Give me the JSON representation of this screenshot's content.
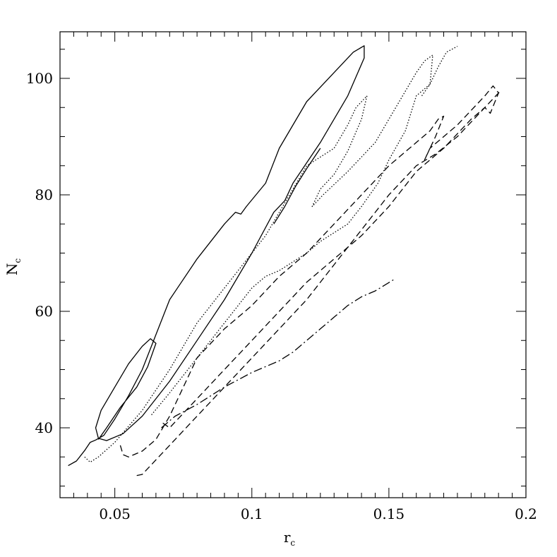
{
  "chart_data": {
    "type": "line",
    "xlabel": "r",
    "xlabel_sub": "c",
    "ylabel": "N",
    "ylabel_sub": "c",
    "xlim": [
      0.03,
      0.2
    ],
    "ylim": [
      28,
      108
    ],
    "xticks": [
      0.05,
      0.1,
      0.15,
      0.2
    ],
    "xtick_labels": [
      "0.05",
      "0.1",
      "0.15",
      "0.2"
    ],
    "yticks": [
      40,
      60,
      80,
      100
    ],
    "ytick_labels": [
      "40",
      "60",
      "80",
      "100"
    ],
    "grid": false,
    "series": [
      {
        "style": "solid",
        "points": [
          [
            0.033,
            33.5
          ],
          [
            0.036,
            34.3
          ],
          [
            0.039,
            36.1
          ],
          [
            0.041,
            37.5
          ],
          [
            0.043,
            37.9
          ],
          [
            0.046,
            38.7
          ],
          [
            0.05,
            41.5
          ],
          [
            0.055,
            45.5
          ],
          [
            0.06,
            50.0
          ],
          [
            0.065,
            56.0
          ],
          [
            0.07,
            62.0
          ],
          [
            0.08,
            69.0
          ],
          [
            0.09,
            75.0
          ],
          [
            0.094,
            77.0
          ],
          [
            0.096,
            76.7
          ],
          [
            0.098,
            78.0
          ],
          [
            0.105,
            82.0
          ],
          [
            0.11,
            88.0
          ],
          [
            0.12,
            96.0
          ],
          [
            0.13,
            101.0
          ],
          [
            0.137,
            104.5
          ],
          [
            0.141,
            105.6
          ],
          [
            0.141,
            103.5
          ],
          [
            0.135,
            97.0
          ],
          [
            0.125,
            89.0
          ],
          [
            0.115,
            82.0
          ],
          [
            0.112,
            79.0
          ],
          [
            0.108,
            77.0
          ],
          [
            0.1,
            70.0
          ],
          [
            0.09,
            62.0
          ],
          [
            0.08,
            55.0
          ],
          [
            0.07,
            48.0
          ],
          [
            0.06,
            42.0
          ],
          [
            0.053,
            39.0
          ],
          [
            0.047,
            37.8
          ],
          [
            0.044,
            38.2
          ],
          [
            0.043,
            40.0
          ],
          [
            0.045,
            43.0
          ],
          [
            0.05,
            47.0
          ],
          [
            0.055,
            51.0
          ],
          [
            0.06,
            54.0
          ],
          [
            0.063,
            55.3
          ],
          [
            0.065,
            54.5
          ],
          [
            0.062,
            50.5
          ],
          [
            0.058,
            47.0
          ],
          [
            0.052,
            43.5
          ],
          [
            0.047,
            40.0
          ],
          [
            0.044,
            38.0
          ]
        ]
      },
      {
        "style": "solid",
        "points": [
          [
            0.108,
            75.0
          ],
          [
            0.112,
            78.0
          ],
          [
            0.116,
            81.5
          ],
          [
            0.12,
            84.5
          ],
          [
            0.125,
            88.0
          ]
        ]
      },
      {
        "style": "dotted",
        "points": [
          [
            0.039,
            35.0
          ],
          [
            0.041,
            34.1
          ],
          [
            0.044,
            35.0
          ],
          [
            0.05,
            37.5
          ],
          [
            0.06,
            43.0
          ],
          [
            0.07,
            50.0
          ],
          [
            0.08,
            58.0
          ],
          [
            0.09,
            64.0
          ],
          [
            0.1,
            70.0
          ],
          [
            0.105,
            73.0
          ],
          [
            0.11,
            77.0
          ],
          [
            0.115,
            81.0
          ],
          [
            0.12,
            85.0
          ],
          [
            0.13,
            88.0
          ],
          [
            0.135,
            92.0
          ],
          [
            0.138,
            95.0
          ],
          [
            0.142,
            97.0
          ],
          [
            0.14,
            93.0
          ],
          [
            0.135,
            87.5
          ],
          [
            0.13,
            83.5
          ],
          [
            0.125,
            81.0
          ],
          [
            0.122,
            78.0
          ],
          [
            0.126,
            80.0
          ],
          [
            0.135,
            84.0
          ],
          [
            0.145,
            89.0
          ],
          [
            0.15,
            93.0
          ],
          [
            0.155,
            97.0
          ],
          [
            0.16,
            101.0
          ],
          [
            0.163,
            103.0
          ],
          [
            0.166,
            104.0
          ],
          [
            0.165,
            99.0
          ],
          [
            0.16,
            97.0
          ],
          [
            0.156,
            91.0
          ],
          [
            0.15,
            86.0
          ],
          [
            0.146,
            82.0
          ],
          [
            0.14,
            78.0
          ],
          [
            0.135,
            75.0
          ],
          [
            0.125,
            72.0
          ],
          [
            0.12,
            70.0
          ],
          [
            0.11,
            67.0
          ],
          [
            0.105,
            66.0
          ],
          [
            0.1,
            64.0
          ],
          [
            0.09,
            58.0
          ],
          [
            0.08,
            52.0
          ],
          [
            0.07,
            46.0
          ],
          [
            0.063,
            42.0
          ]
        ]
      },
      {
        "style": "dotted",
        "points": [
          [
            0.162,
            97.0
          ],
          [
            0.165,
            99.0
          ],
          [
            0.168,
            102.0
          ],
          [
            0.171,
            104.5
          ],
          [
            0.175,
            105.5
          ]
        ]
      },
      {
        "style": "dashed",
        "points": [
          [
            0.052,
            37.0
          ],
          [
            0.053,
            35.4
          ],
          [
            0.055,
            35.0
          ],
          [
            0.06,
            36.0
          ],
          [
            0.065,
            38.0
          ],
          [
            0.07,
            42.0
          ],
          [
            0.075,
            47.0
          ],
          [
            0.08,
            52.0
          ],
          [
            0.09,
            57.0
          ],
          [
            0.1,
            61.0
          ],
          [
            0.11,
            66.0
          ],
          [
            0.12,
            70.0
          ],
          [
            0.13,
            75.0
          ],
          [
            0.14,
            80.0
          ],
          [
            0.15,
            85.0
          ],
          [
            0.16,
            89.0
          ],
          [
            0.165,
            91.0
          ],
          [
            0.168,
            93.0
          ],
          [
            0.17,
            93.5
          ],
          [
            0.167,
            90.0
          ],
          [
            0.163,
            86.0
          ],
          [
            0.165,
            88.0
          ],
          [
            0.175,
            92.0
          ],
          [
            0.185,
            97.0
          ],
          [
            0.188,
            98.7
          ],
          [
            0.19,
            97.5
          ],
          [
            0.187,
            94.0
          ],
          [
            0.185,
            95.0
          ],
          [
            0.18,
            93.0
          ],
          [
            0.17,
            88.0
          ],
          [
            0.16,
            84.0
          ],
          [
            0.15,
            78.0
          ],
          [
            0.14,
            73.0
          ],
          [
            0.13,
            69.0
          ],
          [
            0.12,
            65.0
          ],
          [
            0.11,
            60.0
          ],
          [
            0.1,
            55.0
          ],
          [
            0.09,
            50.0
          ],
          [
            0.08,
            45.0
          ],
          [
            0.07,
            40.0
          ],
          [
            0.067,
            41.0
          ]
        ]
      },
      {
        "style": "dashed",
        "points": [
          [
            0.058,
            31.8
          ],
          [
            0.06,
            32.0
          ],
          [
            0.07,
            37.0
          ],
          [
            0.08,
            42.0
          ],
          [
            0.09,
            47.0
          ],
          [
            0.1,
            52.0
          ],
          [
            0.11,
            57.0
          ],
          [
            0.12,
            62.0
          ],
          [
            0.13,
            68.0
          ],
          [
            0.14,
            74.0
          ],
          [
            0.15,
            80.0
          ],
          [
            0.16,
            85.0
          ],
          [
            0.167,
            87.0
          ],
          [
            0.175,
            90.0
          ],
          [
            0.185,
            95.0
          ],
          [
            0.191,
            98.0
          ]
        ]
      },
      {
        "style": "dashdot",
        "points": [
          [
            0.067,
            40.0
          ],
          [
            0.072,
            42.0
          ],
          [
            0.08,
            44.0
          ],
          [
            0.09,
            47.0
          ],
          [
            0.1,
            49.5
          ],
          [
            0.11,
            51.5
          ],
          [
            0.115,
            53.0
          ],
          [
            0.12,
            55.0
          ],
          [
            0.125,
            57.0
          ],
          [
            0.13,
            59.0
          ],
          [
            0.135,
            61.0
          ],
          [
            0.14,
            62.5
          ],
          [
            0.145,
            63.5
          ],
          [
            0.152,
            65.5
          ]
        ]
      }
    ]
  }
}
